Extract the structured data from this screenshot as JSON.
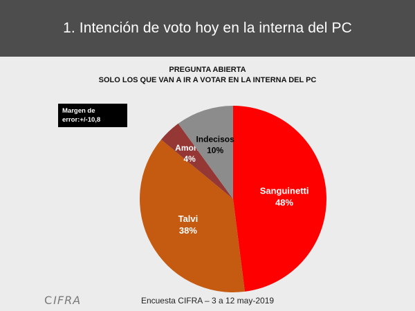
{
  "header": {
    "title": "1. Intención de voto hoy en la interna del PC"
  },
  "subtitle": {
    "line1": "PREGUNTA ABIERTA",
    "line2": "SOLO LOS QUE VAN A IR A VOTAR EN LA INTERNA DEL  PC"
  },
  "margin_box": {
    "line1": "Margen de",
    "line2": "error:+/-10,8"
  },
  "footer": {
    "text": "Encuesta CIFRA  – 3 a 12 may-2019"
  },
  "logo": {
    "text": "IFRA",
    "mark": "C"
  },
  "chart_data": {
    "type": "pie",
    "title": "1. Intención de voto hoy en la interna del PC",
    "start": "12 o'clock, clockwise",
    "slices": [
      {
        "name": "Sanguinetti",
        "value": 48,
        "label": "48%",
        "color": "#ff0000",
        "text_color": "#ffffff"
      },
      {
        "name": "Talvi",
        "value": 38,
        "label": "38%",
        "color": "#c55a11",
        "text_color": "#ffffff"
      },
      {
        "name": "Amorín",
        "value": 4,
        "label": "4%",
        "color": "#953735",
        "text_color": "#ffffff"
      },
      {
        "name": "Indecisos",
        "value": 10,
        "label": "10%",
        "color": "#8c8c8c",
        "text_color": "#000000"
      }
    ]
  }
}
